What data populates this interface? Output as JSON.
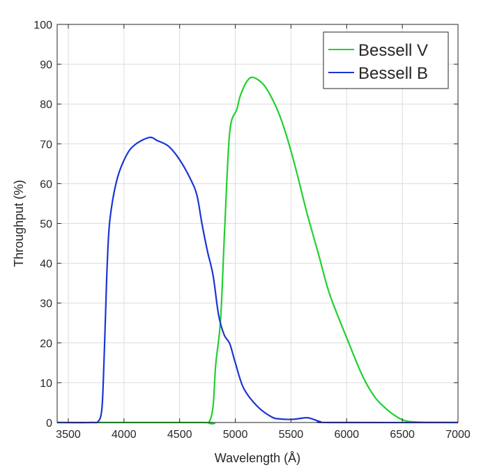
{
  "chart_data": {
    "type": "line",
    "title": "",
    "xlabel": "Wavelength (Å)",
    "ylabel": "Throughput (%)",
    "xlim": [
      3400,
      7000
    ],
    "ylim": [
      0,
      100
    ],
    "xticks": [
      3500,
      4000,
      4500,
      5000,
      5500,
      6000,
      6500,
      7000
    ],
    "yticks": [
      0,
      10,
      20,
      30,
      40,
      50,
      60,
      70,
      80,
      90,
      100
    ],
    "grid": true,
    "legend_position": "top-right",
    "series": [
      {
        "name": "Bessell V",
        "color": "#1fd12f",
        "x": [
          3400,
          4700,
          4761,
          4800,
          4824,
          4868,
          4906,
          4950,
          5013,
          5044,
          5100,
          5157,
          5250,
          5326,
          5400,
          5471,
          5550,
          5640,
          5750,
          5850,
          6019,
          6144,
          6250,
          6333,
          6430,
          6521,
          6650,
          7000
        ],
        "y": [
          0,
          0,
          0,
          4,
          14.5,
          26,
          49.6,
          73,
          78.6,
          82,
          85.5,
          86.7,
          85,
          81.6,
          77,
          71,
          63,
          53,
          42,
          32,
          20,
          11.6,
          6.5,
          4,
          1.8,
          0.5,
          0.1,
          0
        ]
      },
      {
        "name": "Bessell B",
        "color": "#1a35d6",
        "x": [
          3400,
          3700,
          3770,
          3800,
          3814,
          3832,
          3850,
          3874,
          3937,
          4020,
          4100,
          4228,
          4300,
          4400,
          4500,
          4600,
          4656,
          4700,
          4750,
          4800,
          4850,
          4900,
          4950,
          5000,
          5075,
          5200,
          5326,
          5400,
          5514,
          5640,
          5700,
          5765,
          5850,
          7000
        ],
        "y": [
          0,
          0,
          0.3,
          3,
          10,
          25,
          40,
          51,
          61,
          67,
          69.8,
          71.6,
          70.8,
          69.4,
          66,
          61,
          57,
          50,
          43,
          37,
          27,
          22,
          19.8,
          15,
          8.6,
          4,
          1.4,
          0.9,
          0.8,
          1.2,
          0.8,
          0.2,
          0,
          0
        ]
      }
    ]
  }
}
